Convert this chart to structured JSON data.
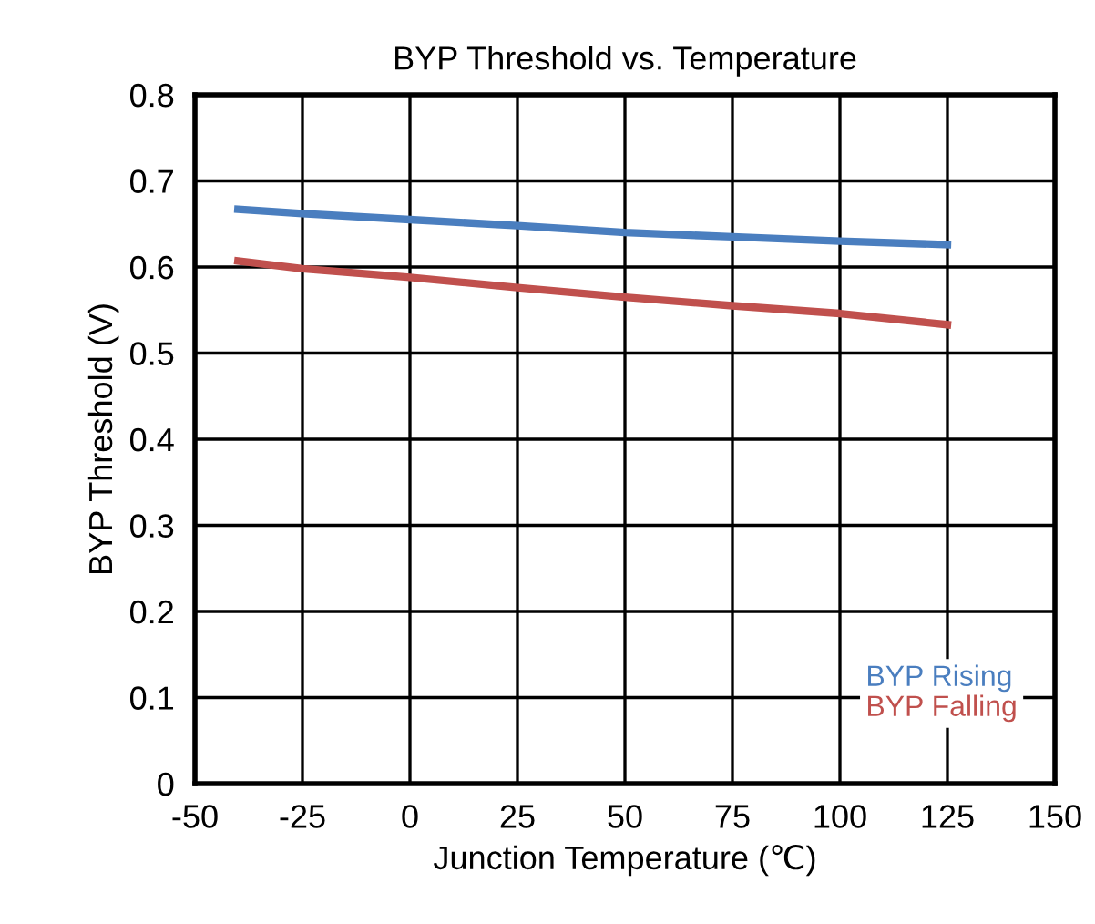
{
  "chart_data": {
    "type": "line",
    "title": "BYP Threshold vs. Temperature",
    "xlabel": "Junction Temperature (℃)",
    "ylabel": "BYP Threshold (V)",
    "x": [
      -40,
      -25,
      0,
      25,
      50,
      75,
      100,
      125
    ],
    "series": [
      {
        "name": "BYP Rising",
        "color": "#4a7ebf",
        "values": [
          0.667,
          0.662,
          0.655,
          0.648,
          0.64,
          0.635,
          0.63,
          0.626
        ]
      },
      {
        "name": "BYP Falling",
        "color": "#c0504d",
        "values": [
          0.607,
          0.598,
          0.588,
          0.576,
          0.565,
          0.555,
          0.546,
          0.533
        ]
      }
    ],
    "xlim": [
      -50,
      150
    ],
    "xticks": [
      -50,
      -25,
      0,
      25,
      50,
      75,
      100,
      125,
      150
    ],
    "ylim": [
      0,
      0.8
    ],
    "yticks": [
      0,
      0.1,
      0.2,
      0.3,
      0.4,
      0.5,
      0.6,
      0.7,
      0.8
    ],
    "grid": true,
    "legend": "bottom right",
    "marker": "none",
    "line_style": "solid"
  }
}
